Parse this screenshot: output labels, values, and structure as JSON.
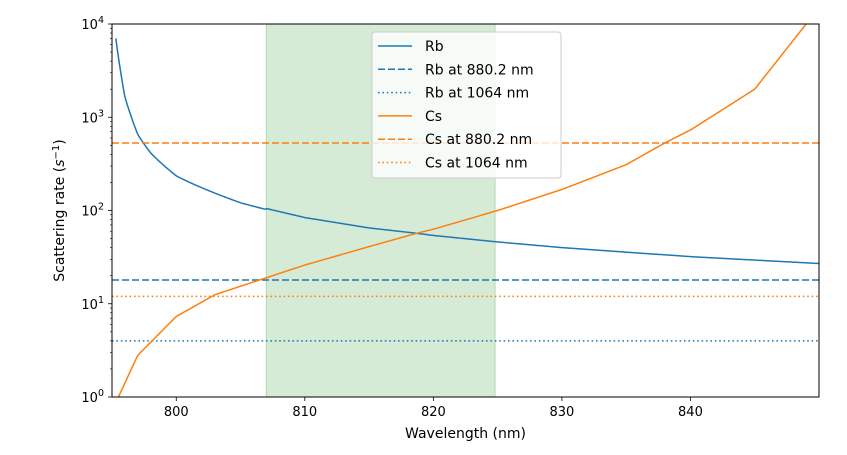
{
  "chart_data": {
    "type": "line",
    "xlabel": "Wavelength (nm)",
    "ylabel": "Scattering rate",
    "ylabel_unit_symbol": "s",
    "ylabel_unit_exponent": "−1",
    "xlim": [
      795.0,
      850.0
    ],
    "ylim": [
      1,
      10000
    ],
    "yscale": "log",
    "x_ticks": [
      800,
      810,
      820,
      830,
      840
    ],
    "y_ticks": [
      {
        "value": 1,
        "mantissa": "10",
        "exponent": "0"
      },
      {
        "value": 10,
        "mantissa": "10",
        "exponent": "1"
      },
      {
        "value": 100,
        "mantissa": "10",
        "exponent": "2"
      },
      {
        "value": 1000,
        "mantissa": "10",
        "exponent": "3"
      },
      {
        "value": 10000,
        "mantissa": "10",
        "exponent": "4"
      }
    ],
    "shaded_region": {
      "x_start": 807.0,
      "x_end": 824.8,
      "color": "#d5ebd5"
    },
    "legend_location": "upper center",
    "series": [
      {
        "name": "Rb",
        "style": "solid",
        "color": "#1f77b4",
        "curve": "rb",
        "x": [
          795.3,
          796.0,
          797.0,
          798.0,
          800.0,
          805.0,
          810.0,
          815.0,
          818.7,
          820.0,
          825.0,
          830.0,
          840.0,
          850.0
        ],
        "y": [
          10000,
          2100,
          710,
          430,
          230,
          122,
          84,
          65,
          57,
          54,
          46,
          40,
          32,
          27
        ]
      },
      {
        "name": "Rb at 880.2 nm",
        "style": "dashed",
        "color": "#1f77b4",
        "constant": 18
      },
      {
        "name": "Rb at 1064 nm",
        "style": "dotted",
        "color": "#1f77b4",
        "constant": 4
      },
      {
        "name": "Cs",
        "style": "solid",
        "color": "#ff7f0e",
        "curve": "cs",
        "x": [
          795.5,
          797.0,
          800.0,
          803.0,
          807.0,
          810.0,
          815.0,
          818.7,
          820.0,
          825.0,
          830.0,
          835.0,
          838.0,
          840.0,
          845.0,
          849.0
        ],
        "y": [
          1,
          2.8,
          7.3,
          12.5,
          19,
          26,
          41,
          57,
          63,
          100,
          168,
          310,
          530,
          730,
          2000,
          10000
        ]
      },
      {
        "name": "Cs at 880.2 nm",
        "style": "dashed",
        "color": "#ff7f0e",
        "constant": 530
      },
      {
        "name": "Cs at 1064 nm",
        "style": "dotted",
        "color": "#ff7f0e",
        "constant": 12
      }
    ]
  }
}
